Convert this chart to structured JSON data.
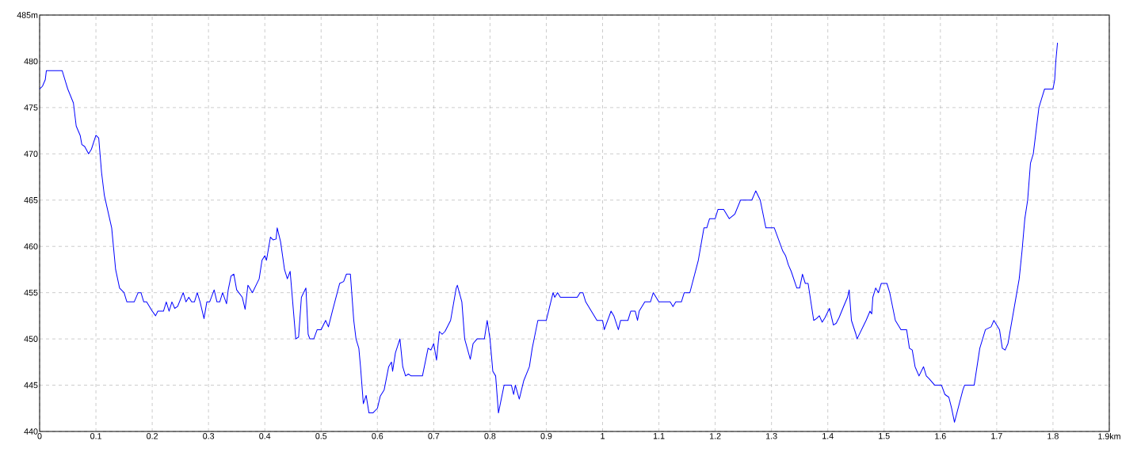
{
  "chart_data": {
    "type": "line",
    "x": [
      0,
      0.005,
      0.01,
      0.012,
      0.04,
      0.045,
      0.05,
      0.06,
      0.065,
      0.072,
      0.075,
      0.08,
      0.087,
      0.092,
      0.1,
      0.105,
      0.11,
      0.115,
      0.128,
      0.135,
      0.142,
      0.15,
      0.155,
      0.168,
      0.175,
      0.18,
      0.185,
      0.19,
      0.2,
      0.206,
      0.21,
      0.22,
      0.225,
      0.23,
      0.235,
      0.24,
      0.245,
      0.255,
      0.26,
      0.265,
      0.27,
      0.275,
      0.28,
      0.285,
      0.292,
      0.297,
      0.302,
      0.31,
      0.315,
      0.32,
      0.325,
      0.332,
      0.335,
      0.34,
      0.345,
      0.35,
      0.36,
      0.365,
      0.37,
      0.378,
      0.39,
      0.395,
      0.4,
      0.403,
      0.41,
      0.415,
      0.42,
      0.422,
      0.428,
      0.435,
      0.44,
      0.445,
      0.455,
      0.46,
      0.465,
      0.473,
      0.477,
      0.48,
      0.487,
      0.493,
      0.5,
      0.508,
      0.513,
      0.52,
      0.533,
      0.54,
      0.545,
      0.552,
      0.558,
      0.562,
      0.567,
      0.57,
      0.575,
      0.58,
      0.585,
      0.592,
      0.6,
      0.605,
      0.612,
      0.62,
      0.625,
      0.627,
      0.632,
      0.64,
      0.645,
      0.65,
      0.655,
      0.66,
      0.68,
      0.69,
      0.695,
      0.7,
      0.705,
      0.71,
      0.715,
      0.72,
      0.73,
      0.74,
      0.742,
      0.75,
      0.755,
      0.765,
      0.77,
      0.777,
      0.79,
      0.795,
      0.8,
      0.805,
      0.81,
      0.815,
      0.825,
      0.838,
      0.842,
      0.845,
      0.852,
      0.86,
      0.87,
      0.875,
      0.885,
      0.9,
      0.912,
      0.915,
      0.92,
      0.925,
      0.955,
      0.96,
      0.965,
      0.97,
      0.98,
      0.99,
      1.0,
      1.003,
      1.015,
      1.02,
      1.028,
      1.032,
      1.045,
      1.05,
      1.058,
      1.062,
      1.065,
      1.075,
      1.085,
      1.09,
      1.1,
      1.12,
      1.125,
      1.13,
      1.14,
      1.145,
      1.155,
      1.17,
      1.18,
      1.185,
      1.19,
      1.2,
      1.205,
      1.215,
      1.225,
      1.235,
      1.245,
      1.265,
      1.272,
      1.28,
      1.29,
      1.305,
      1.32,
      1.325,
      1.33,
      1.335,
      1.345,
      1.35,
      1.355,
      1.36,
      1.365,
      1.375,
      1.38,
      1.385,
      1.39,
      1.395,
      1.403,
      1.41,
      1.415,
      1.42,
      1.428,
      1.435,
      1.438,
      1.442,
      1.45,
      1.452,
      1.46,
      1.468,
      1.475,
      1.478,
      1.48,
      1.485,
      1.49,
      1.495,
      1.505,
      1.51,
      1.52,
      1.53,
      1.54,
      1.545,
      1.55,
      1.555,
      1.562,
      1.57,
      1.575,
      1.58,
      1.59,
      1.602,
      1.608,
      1.615,
      1.62,
      1.625,
      1.64,
      1.643,
      1.66,
      1.67,
      1.68,
      1.69,
      1.695,
      1.705,
      1.71,
      1.715,
      1.72,
      1.73,
      1.74,
      1.745,
      1.75,
      1.755,
      1.76,
      1.765,
      1.77,
      1.775,
      1.78,
      1.785,
      1.8,
      1.803,
      1.805,
      1.808
    ],
    "series": [
      {
        "color": "#0000ff",
        "values": [
          477,
          477.3,
          478,
          479,
          479,
          478,
          477,
          475.5,
          473,
          472,
          471,
          470.8,
          470,
          470.5,
          472,
          471.7,
          468,
          465.5,
          462,
          457.5,
          455.5,
          455,
          454,
          454,
          455,
          455,
          454,
          454,
          453,
          452.5,
          453,
          453,
          454,
          453,
          454,
          453.3,
          453.5,
          455,
          454,
          454.5,
          454,
          454,
          455,
          454,
          452.2,
          454,
          454,
          455.3,
          454,
          454,
          455,
          453.8,
          455.3,
          456.8,
          457,
          455.3,
          454.5,
          453.2,
          455.8,
          455,
          456.5,
          458.5,
          459,
          458.5,
          461,
          460.7,
          460.8,
          462,
          460.5,
          457.5,
          456.5,
          457.3,
          450,
          450.2,
          454.5,
          455.5,
          450.5,
          450,
          450,
          451,
          451,
          452,
          451.3,
          453,
          456,
          456.2,
          457,
          457,
          452,
          450,
          449,
          447,
          443,
          443.9,
          442,
          442,
          442.5,
          443.8,
          444.5,
          447,
          447.5,
          446.5,
          448.5,
          450,
          447,
          446,
          446.2,
          446,
          446,
          449,
          448.8,
          449.5,
          447.7,
          450.8,
          450.5,
          450.8,
          452,
          455.5,
          455.8,
          454,
          450,
          447.8,
          449.5,
          450,
          450,
          452,
          450,
          446.5,
          446,
          442,
          445,
          445,
          444,
          445,
          443.5,
          445.5,
          447,
          449,
          452,
          452,
          455,
          454.5,
          455,
          454.5,
          454.5,
          455,
          455,
          454,
          453,
          452,
          452,
          451,
          453,
          452.5,
          451,
          452,
          452,
          453,
          453,
          452,
          453,
          454,
          454,
          455,
          454,
          454,
          453.5,
          454,
          454,
          455,
          455,
          458.5,
          462,
          462,
          463,
          463,
          464,
          464,
          463,
          463.5,
          465,
          465,
          466,
          465,
          462,
          462,
          459.5,
          459,
          458,
          457.3,
          455.5,
          455.5,
          457,
          456,
          456,
          452,
          452.2,
          452.5,
          451.8,
          452.3,
          453.3,
          451.5,
          451.7,
          452.3,
          453.5,
          454.5,
          455.3,
          452,
          450.5,
          450,
          451,
          452,
          453,
          452.7,
          454.5,
          455.5,
          455,
          456,
          456,
          455,
          452,
          451,
          451,
          449,
          448.8,
          447,
          446,
          447,
          446,
          445.7,
          445,
          445,
          444,
          443.7,
          442.5,
          441,
          444.5,
          445,
          445,
          449,
          451,
          451.3,
          452,
          451,
          449,
          448.8,
          449.5,
          453,
          456.5,
          459.5,
          463,
          465,
          469,
          470,
          472.5,
          475,
          476,
          477,
          477,
          478,
          480,
          482
        ]
      }
    ],
    "xlim": [
      0,
      1.9
    ],
    "ylim": [
      440,
      485
    ],
    "xticks": [
      0,
      0.1,
      0.2,
      0.3,
      0.4,
      0.5,
      0.6,
      0.7,
      0.8,
      0.9,
      1,
      1.1,
      1.2,
      1.3,
      1.4,
      1.5,
      1.6,
      1.7,
      1.8,
      {
        "value": 1.9,
        "label": "1.9km"
      }
    ],
    "yticks": [
      440,
      445,
      450,
      455,
      460,
      465,
      470,
      475,
      480,
      {
        "value": 485,
        "label": "485m"
      }
    ],
    "grid": true
  }
}
